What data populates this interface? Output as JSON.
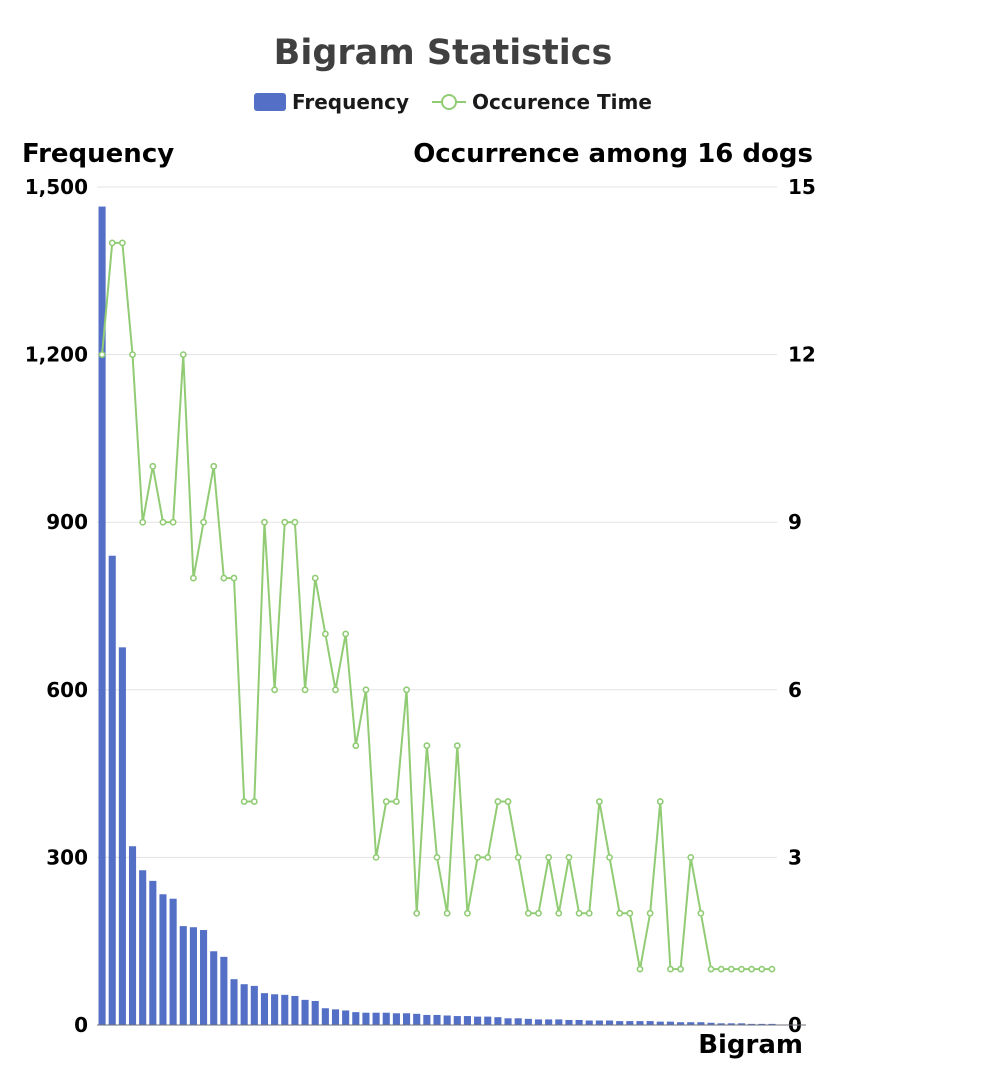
{
  "chart_data": {
    "type": "bar+line",
    "title": "Bigram Statistics",
    "legend": {
      "placement": "top-center",
      "entries": [
        "Frequency",
        "Occurence Time"
      ]
    },
    "xlabel": "Bigram",
    "ylabel_left": "Frequency",
    "ylabel_right": "Occurrence among 16 dogs",
    "ylim_left": [
      0,
      1500
    ],
    "ylim_right": [
      0,
      15
    ],
    "yticks_left": [
      "0",
      "300",
      "600",
      "900",
      "1,200",
      "1,500"
    ],
    "yticks_right": [
      "0",
      "3",
      "6",
      "9",
      "12",
      "15"
    ],
    "grid": true,
    "colors": {
      "bar": "#5470c6",
      "line": "#91cc75"
    },
    "series": [
      {
        "name": "Frequency",
        "type": "bar",
        "values": [
          1465,
          840,
          676,
          320,
          277,
          258,
          234,
          226,
          177,
          175,
          170,
          132,
          122,
          82,
          73,
          70,
          57,
          55,
          54,
          52,
          45,
          43,
          30,
          28,
          26,
          23,
          22,
          22,
          22,
          21,
          21,
          20,
          18,
          18,
          17,
          16,
          16,
          15,
          15,
          14,
          12,
          12,
          11,
          10,
          10,
          10,
          9,
          9,
          8,
          8,
          8,
          7,
          7,
          7,
          7,
          6,
          6,
          5,
          5,
          5,
          4,
          3,
          3,
          3,
          2,
          2,
          2
        ]
      },
      {
        "name": "Occurence Time",
        "type": "line",
        "values": [
          12,
          14,
          14,
          12,
          9,
          10,
          9,
          9,
          12,
          8,
          9,
          10,
          8,
          8,
          4,
          4,
          9,
          6,
          9,
          9,
          6,
          8,
          7,
          6,
          7,
          5,
          6,
          3,
          4,
          4,
          6,
          2,
          5,
          3,
          2,
          5,
          2,
          3,
          3,
          4,
          4,
          3,
          2,
          2,
          3,
          2,
          3,
          2,
          2,
          4,
          3,
          2,
          2,
          1,
          2,
          4,
          1,
          1,
          3,
          2,
          1,
          1,
          1,
          1,
          1,
          1,
          1
        ]
      }
    ]
  }
}
